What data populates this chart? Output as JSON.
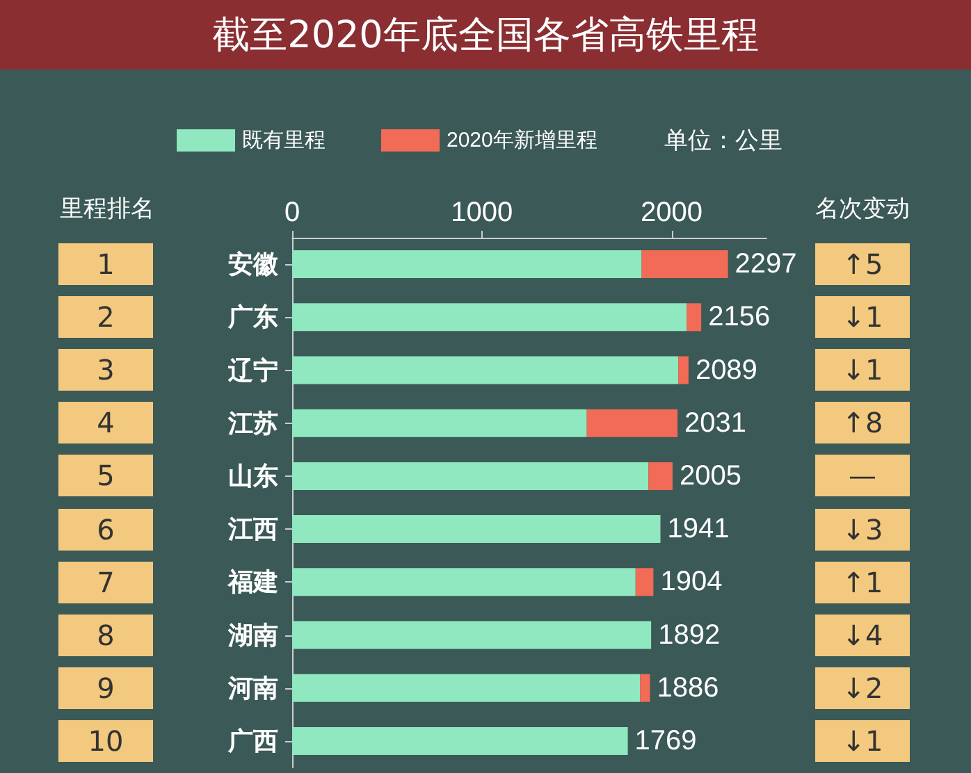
{
  "chart_data": {
    "type": "bar",
    "orientation": "horizontal",
    "stacked": true,
    "title": "截至2020年底全国各省高铁里程",
    "categories": [
      "安徽",
      "广东",
      "辽宁",
      "江苏",
      "山东",
      "江西",
      "福建",
      "湖南",
      "河南",
      "广西"
    ],
    "series": [
      {
        "name": "既有里程",
        "color": "#8fe8bf",
        "values": [
          1842,
          2079,
          2035,
          1553,
          1878,
          1941,
          1810,
          1892,
          1834,
          1769
        ]
      },
      {
        "name": "2020年新增里程",
        "color": "#f26b56",
        "values": [
          455,
          77,
          54,
          478,
          127,
          0,
          94,
          0,
          52,
          0
        ]
      }
    ],
    "totals": [
      "2297",
      "2156",
      "2089",
      "2031",
      "2005",
      "1941",
      "1904",
      "1892",
      "1886",
      "1769"
    ],
    "xlim": [
      0,
      2500
    ],
    "xticks": [
      0,
      1000,
      2000
    ],
    "grid": false,
    "legend": "top",
    "annotations": [
      "单位：公里",
      "里程排名",
      "名次变动",
      "1",
      "2",
      "3",
      "4",
      "5",
      "6",
      "7",
      "8",
      "9",
      "10",
      "↑5",
      "↓1",
      "↓1",
      "↑8",
      "—",
      "↓3",
      "↑1",
      "↓4",
      "↓2",
      "↓1"
    ]
  }
}
